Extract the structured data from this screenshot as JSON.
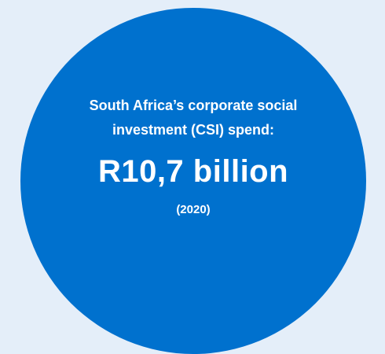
{
  "infographic": {
    "intro_line_1": "South Africa’s corporate social",
    "intro_line_2": "investment (CSI) spend:",
    "amount": "R10,7 billion",
    "year": "(2020)"
  },
  "colors": {
    "background": "#E4EEF9",
    "circle": "#0071CE",
    "text": "#FFFFFF"
  }
}
